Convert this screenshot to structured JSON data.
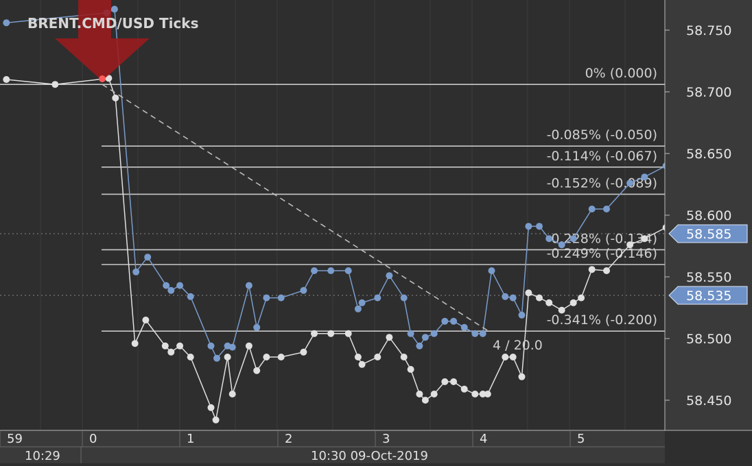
{
  "chart_data": {
    "type": "line",
    "title": "BRENT.CMD/USD  Ticks",
    "x_axis": {
      "upper_ticks": [
        "59",
        "0",
        "1",
        "2",
        "3",
        "4",
        "5"
      ],
      "lower_labels": [
        "10:29",
        "10:30 09-Oct-2019"
      ]
    },
    "y_axis": {
      "ticks": [
        "58.750",
        "58.700",
        "58.650",
        "58.600",
        "58.550",
        "58.500",
        "58.450"
      ],
      "ylim": [
        58.43,
        58.76
      ]
    },
    "price_badges": [
      {
        "label": "58.585",
        "value": 58.585,
        "color": "#6e91c7"
      },
      {
        "label": "58.535",
        "value": 58.535,
        "color": "#6e91c7"
      }
    ],
    "fibonacci": {
      "levels": [
        {
          "label": "0% (0.000)",
          "value": 58.706
        },
        {
          "label": "-0.085% (-0.050)",
          "value": 58.656
        },
        {
          "label": "-0.114% (-0.067)",
          "value": 58.639
        },
        {
          "label": "-0.152% (-0.089)",
          "value": 58.617
        },
        {
          "label": "-0.228% (-0.134)",
          "value": 58.572
        },
        {
          "label": "-0.249% (-0.146)",
          "value": 58.56
        },
        {
          "label": "-0.341% (-0.200)",
          "value": 58.506
        }
      ],
      "measure_label": "4 / 20.0"
    },
    "series": [
      {
        "color": "#7a9ccc",
        "points": [
          [
            59.15,
            58.756
          ],
          [
            0.18,
            58.764
          ],
          [
            0.26,
            58.767
          ],
          [
            0.48,
            58.554
          ],
          [
            0.6,
            58.566
          ],
          [
            0.79,
            58.543
          ],
          [
            0.84,
            58.539
          ],
          [
            0.93,
            58.543
          ],
          [
            1.04,
            58.534
          ],
          [
            1.25,
            58.494
          ],
          [
            1.31,
            58.484
          ],
          [
            1.42,
            58.494
          ],
          [
            1.47,
            58.493
          ],
          [
            1.64,
            58.543
          ],
          [
            1.72,
            58.509
          ],
          [
            1.82,
            58.533
          ],
          [
            1.97,
            58.533
          ],
          [
            2.2,
            58.539
          ],
          [
            2.31,
            58.555
          ],
          [
            2.48,
            58.555
          ],
          [
            2.66,
            58.555
          ],
          [
            2.76,
            58.524
          ],
          [
            2.8,
            58.529
          ],
          [
            2.96,
            58.533
          ],
          [
            3.08,
            58.551
          ],
          [
            3.23,
            58.533
          ],
          [
            3.3,
            58.504
          ],
          [
            3.39,
            58.494
          ],
          [
            3.45,
            58.501
          ],
          [
            3.54,
            58.504
          ],
          [
            3.65,
            58.514
          ],
          [
            3.74,
            58.514
          ],
          [
            3.85,
            58.509
          ],
          [
            3.96,
            58.504
          ],
          [
            4.04,
            58.504
          ],
          [
            4.13,
            58.555
          ],
          [
            4.27,
            58.534
          ],
          [
            4.35,
            58.533
          ],
          [
            4.44,
            58.519
          ],
          [
            4.51,
            58.591
          ],
          [
            4.62,
            58.591
          ],
          [
            4.72,
            58.581
          ],
          [
            4.85,
            58.576
          ],
          [
            4.97,
            58.581
          ],
          [
            5.16,
            58.605
          ],
          [
            5.31,
            58.605
          ],
          [
            5.55,
            58.626
          ],
          [
            5.7,
            58.631
          ],
          [
            5.92,
            58.64
          ]
        ]
      },
      {
        "color": "#e0e0e0",
        "points": [
          [
            59.15,
            58.71
          ],
          [
            59.65,
            58.706
          ],
          [
            0.2,
            58.711
          ],
          [
            0.27,
            58.695
          ],
          [
            0.47,
            58.496
          ],
          [
            0.58,
            58.515
          ],
          [
            0.78,
            58.494
          ],
          [
            0.84,
            58.489
          ],
          [
            0.93,
            58.494
          ],
          [
            1.04,
            58.485
          ],
          [
            1.25,
            58.444
          ],
          [
            1.3,
            58.434
          ],
          [
            1.42,
            58.485
          ],
          [
            1.47,
            58.455
          ],
          [
            1.64,
            58.494
          ],
          [
            1.72,
            58.474
          ],
          [
            1.82,
            58.485
          ],
          [
            1.97,
            58.485
          ],
          [
            2.2,
            58.489
          ],
          [
            2.31,
            58.504
          ],
          [
            2.48,
            58.504
          ],
          [
            2.66,
            58.504
          ],
          [
            2.76,
            58.485
          ],
          [
            2.8,
            58.479
          ],
          [
            2.96,
            58.485
          ],
          [
            3.08,
            58.501
          ],
          [
            3.23,
            58.485
          ],
          [
            3.3,
            58.475
          ],
          [
            3.39,
            58.455
          ],
          [
            3.45,
            58.45
          ],
          [
            3.54,
            58.455
          ],
          [
            3.65,
            58.465
          ],
          [
            3.74,
            58.465
          ],
          [
            3.85,
            58.459
          ],
          [
            3.96,
            58.455
          ],
          [
            4.04,
            58.455
          ],
          [
            4.09,
            58.455
          ],
          [
            4.27,
            58.485
          ],
          [
            4.35,
            58.485
          ],
          [
            4.44,
            58.469
          ],
          [
            4.51,
            58.537
          ],
          [
            4.62,
            58.533
          ],
          [
            4.72,
            58.529
          ],
          [
            4.85,
            58.523
          ],
          [
            4.97,
            58.529
          ],
          [
            5.05,
            58.533
          ],
          [
            5.16,
            58.556
          ],
          [
            5.31,
            58.555
          ],
          [
            5.55,
            58.576
          ],
          [
            5.7,
            58.581
          ],
          [
            5.92,
            58.59
          ]
        ]
      }
    ]
  }
}
